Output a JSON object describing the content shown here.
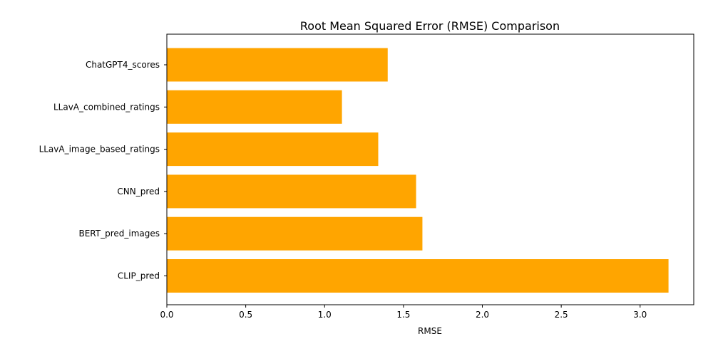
{
  "chart_data": {
    "type": "bar",
    "orientation": "horizontal",
    "title": "Root Mean Squared Error (RMSE) Comparison",
    "xlabel": "RMSE",
    "ylabel": "",
    "categories": [
      "ChatGPT4_scores",
      "LLavA_combined_ratings",
      "LLavA_image_based_ratings",
      "CNN_pred",
      "BERT_pred_images",
      "CLIP_pred"
    ],
    "values": [
      1.4,
      1.11,
      1.34,
      1.58,
      1.62,
      3.18
    ],
    "xlim": [
      0,
      3.34
    ],
    "xticks": [
      "0.0",
      "0.5",
      "1.0",
      "1.5",
      "2.0",
      "2.5",
      "3.0"
    ],
    "bar_color": "#FFA500",
    "grid": false,
    "legend": "none"
  }
}
